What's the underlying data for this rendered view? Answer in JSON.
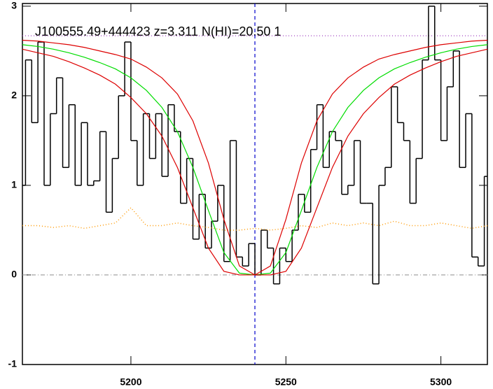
{
  "chart_data": {
    "type": "spectrum",
    "title": "J100555.49+444423 z=3.311 N(HI)=20.50 1",
    "xlim": [
      5165,
      5315
    ],
    "ylim": [
      -1.0,
      3.03
    ],
    "xticks": [
      5200,
      5250,
      5300
    ],
    "yticks": [
      -1,
      0,
      1,
      2,
      3
    ],
    "vlines": [
      {
        "value": 5240,
        "color": "#0000cc",
        "dash": "5,4"
      }
    ],
    "hlines": [
      {
        "value": 2.67,
        "color": "#a040c0",
        "dash": "1,3"
      },
      {
        "value": 0,
        "color": "#999999",
        "dash": "6,3,1,3"
      }
    ],
    "series": [
      {
        "color": "#000000",
        "step": true,
        "dash": "none",
        "x": [
          5165,
          5167,
          5169,
          5171,
          5173,
          5175,
          5177,
          5179,
          5181,
          5183,
          5185,
          5187,
          5189,
          5191,
          5193,
          5195,
          5197,
          5199,
          5201,
          5203,
          5205,
          5207,
          5209,
          5211,
          5213,
          5215,
          5217,
          5219,
          5221,
          5223,
          5225,
          5227,
          5229,
          5231,
          5233,
          5235,
          5237,
          5239,
          5241,
          5243,
          5245,
          5247,
          5249,
          5251,
          5253,
          5255,
          5257,
          5259,
          5261,
          5263,
          5265,
          5267,
          5269,
          5271,
          5273,
          5275,
          5277,
          5279,
          5281,
          5283,
          5285,
          5287,
          5289,
          5291,
          5293,
          5295,
          5297,
          5299,
          5301,
          5303,
          5305,
          5307,
          5309,
          5311,
          5313,
          5315
        ],
        "values": [
          1.0,
          2.4,
          1.7,
          2.6,
          1.0,
          1.8,
          2.2,
          1.2,
          1.9,
          1.0,
          1.7,
          1.0,
          1.05,
          1.6,
          0.7,
          1.3,
          2.0,
          2.6,
          1.5,
          1.0,
          1.8,
          1.3,
          1.8,
          1.1,
          1.9,
          1.6,
          0.8,
          1.3,
          0.4,
          0.9,
          0.3,
          0.6,
          1.0,
          0.15,
          1.5,
          0.2,
          0.1,
          0.35,
          0.0,
          0.5,
          0.3,
          -0.1,
          0.3,
          0.15,
          0.5,
          0.9,
          0.7,
          1.4,
          1.9,
          1.2,
          1.6,
          1.5,
          0.9,
          1.0,
          1.5,
          0.8,
          0.8,
          -0.1,
          1.0,
          1.2,
          2.1,
          1.7,
          1.5,
          0.8,
          1.3,
          2.4,
          3.0,
          2.4,
          1.5,
          2.1,
          2.5,
          1.2,
          1.8,
          0.2,
          0.1,
          1.1
        ]
      },
      {
        "color": "#ff9900",
        "step": false,
        "dash": "1,3",
        "x": [
          5165,
          5170,
          5175,
          5180,
          5185,
          5190,
          5195,
          5200,
          5205,
          5210,
          5215,
          5220,
          5225,
          5230,
          5235,
          5240,
          5245,
          5250,
          5255,
          5260,
          5265,
          5270,
          5275,
          5280,
          5285,
          5290,
          5295,
          5300,
          5305,
          5310,
          5315
        ],
        "values": [
          0.55,
          0.55,
          0.53,
          0.55,
          0.52,
          0.55,
          0.58,
          0.75,
          0.55,
          0.55,
          0.58,
          0.55,
          0.53,
          0.5,
          0.5,
          0.52,
          0.5,
          0.52,
          0.55,
          0.53,
          0.58,
          0.55,
          0.58,
          0.55,
          0.6,
          0.55,
          0.55,
          0.58,
          0.55,
          0.52,
          0.55
        ]
      },
      {
        "color": "#00dd00",
        "step": false,
        "dash": "none",
        "x": [
          5165,
          5170,
          5175,
          5180,
          5185,
          5190,
          5195,
          5200,
          5205,
          5210,
          5215,
          5220,
          5225,
          5230,
          5235,
          5240,
          5245,
          5250,
          5255,
          5260,
          5265,
          5270,
          5275,
          5280,
          5285,
          5290,
          5295,
          5300,
          5305,
          5310,
          5315
        ],
        "values": [
          2.57,
          2.55,
          2.52,
          2.48,
          2.43,
          2.37,
          2.3,
          2.2,
          2.06,
          1.87,
          1.6,
          1.2,
          0.72,
          0.25,
          0.02,
          0.0,
          0.02,
          0.25,
          0.72,
          1.2,
          1.6,
          1.87,
          2.06,
          2.2,
          2.3,
          2.37,
          2.43,
          2.48,
          2.52,
          2.55,
          2.57
        ]
      },
      {
        "color": "#dd0000",
        "step": false,
        "dash": "none",
        "x": [
          5165,
          5170,
          5175,
          5180,
          5185,
          5190,
          5195,
          5200,
          5205,
          5210,
          5215,
          5220,
          5225,
          5230,
          5235,
          5240,
          5245,
          5250,
          5255,
          5260,
          5265,
          5270,
          5275,
          5280,
          5285,
          5290,
          5295,
          5300,
          5305,
          5310,
          5315
        ],
        "values": [
          2.62,
          2.61,
          2.59,
          2.57,
          2.54,
          2.5,
          2.46,
          2.41,
          2.32,
          2.2,
          2.02,
          1.72,
          1.25,
          0.62,
          0.1,
          0.0,
          0.1,
          0.62,
          1.25,
          1.72,
          2.02,
          2.2,
          2.32,
          2.41,
          2.46,
          2.5,
          2.54,
          2.57,
          2.59,
          2.61,
          2.62
        ]
      },
      {
        "color": "#dd0000",
        "step": false,
        "dash": "none",
        "x": [
          5165,
          5170,
          5175,
          5180,
          5185,
          5190,
          5195,
          5200,
          5205,
          5210,
          5215,
          5220,
          5225,
          5230,
          5235,
          5240,
          5245,
          5250,
          5255,
          5260,
          5265,
          5270,
          5275,
          5280,
          5285,
          5290,
          5295,
          5300,
          5305,
          5310,
          5315
        ],
        "values": [
          2.52,
          2.48,
          2.44,
          2.38,
          2.31,
          2.23,
          2.13,
          1.98,
          1.8,
          1.55,
          1.2,
          0.75,
          0.3,
          0.04,
          0.0,
          0.0,
          0.0,
          0.04,
          0.3,
          0.75,
          1.2,
          1.55,
          1.8,
          1.98,
          2.13,
          2.23,
          2.31,
          2.38,
          2.44,
          2.48,
          2.52
        ]
      }
    ]
  }
}
